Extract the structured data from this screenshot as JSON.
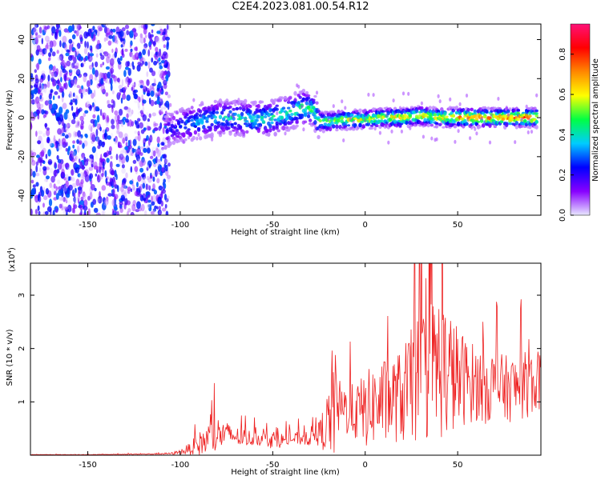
{
  "title": "C2E4.2023.081.00.54.R12",
  "colors": {
    "frame": "#000000",
    "snr_line": "#ee2222",
    "colorbar_stops": [
      "#e8e8ff",
      "#8800ff",
      "#0000ff",
      "#00ccff",
      "#00ff44",
      "#ffff00",
      "#ff8800",
      "#ff0000",
      "#ff1177"
    ]
  },
  "chart_data": [
    {
      "type": "heatmap",
      "title": "C2E4.2023.081.00.54.R12",
      "xlabel": "Height of straight line (km)",
      "ylabel": "Frequency (Hz)",
      "xlim": [
        -181,
        95
      ],
      "ylim": [
        -50,
        48
      ],
      "xticks": [
        -150,
        -100,
        -50,
        0,
        50
      ],
      "yticks": [
        -40,
        -20,
        0,
        20,
        40
      ],
      "grid": false,
      "colorbar": {
        "label": "Normalized spectral amplitude",
        "range": [
          0.0,
          0.95
        ],
        "ticks": [
          0.0,
          0.2,
          0.4,
          0.6,
          0.8
        ]
      },
      "features": {
        "noise_region_x": [
          -181,
          -110
        ],
        "noise_amplitude": 0.15,
        "signal_track": {
          "x": [
            -108,
            -100,
            -90,
            -80,
            -70,
            -60,
            -50,
            -40,
            -33,
            -28,
            -25,
            -20,
            -10,
            0,
            10,
            20,
            30,
            40,
            50,
            60,
            70,
            80,
            93
          ],
          "freq": [
            -7,
            -4,
            -2,
            0,
            0,
            -1,
            0,
            3,
            5,
            4,
            -2,
            -2,
            -1,
            -1,
            0,
            0,
            1,
            0,
            0,
            0,
            0,
            0,
            0
          ],
          "peak_amplitude": [
            0.25,
            0.35,
            0.45,
            0.45,
            0.5,
            0.5,
            0.55,
            0.55,
            0.6,
            0.55,
            0.6,
            0.65,
            0.7,
            0.7,
            0.75,
            0.8,
            0.75,
            0.75,
            0.85,
            0.9,
            0.9,
            0.92,
            0.95
          ]
        }
      }
    },
    {
      "type": "line",
      "xlabel": "Height of straight line (km)",
      "ylabel": "SNR (10 * v/v)",
      "y_multiplier": "(x10",
      "y_multiplier_exp": "4",
      "y_multiplier_close": ")",
      "xlim": [
        -181,
        95
      ],
      "ylim": [
        0,
        3.6
      ],
      "xticks": [
        -150,
        -100,
        -50,
        0,
        50
      ],
      "yticks": [
        1,
        2,
        3
      ],
      "grid": false,
      "series": [
        {
          "x": [
            -181,
            -150,
            -120,
            -105,
            -100,
            -95,
            -90,
            -85,
            -80,
            -75,
            -70,
            -65,
            -60,
            -55,
            -50,
            -45,
            -40,
            -35,
            -30,
            -25,
            -20,
            -17,
            -15,
            -10,
            -5,
            0,
            5,
            10,
            15,
            20,
            25,
            30,
            35,
            40,
            45,
            50,
            55,
            60,
            65,
            70,
            75,
            80,
            85,
            90,
            95
          ],
          "y": [
            0.01,
            0.01,
            0.02,
            0.03,
            0.06,
            0.12,
            0.2,
            0.3,
            0.38,
            0.4,
            0.35,
            0.32,
            0.32,
            0.3,
            0.3,
            0.28,
            0.3,
            0.32,
            0.35,
            0.4,
            0.6,
            1.05,
            0.9,
            0.85,
            0.8,
            0.85,
            0.95,
            1.0,
            1.05,
            1.1,
            1.3,
            1.45,
            1.6,
            1.7,
            1.55,
            1.45,
            1.4,
            1.35,
            1.3,
            1.3,
            1.25,
            1.25,
            1.3,
            1.35,
            1.4
          ],
          "noise_spread": [
            0.005,
            0.005,
            0.01,
            0.02,
            0.05,
            0.12,
            0.25,
            0.35,
            0.4,
            0.25,
            0.2,
            0.2,
            0.15,
            0.15,
            0.2,
            0.15,
            0.12,
            0.15,
            0.2,
            0.25,
            0.7,
            1.4,
            0.6,
            0.55,
            0.6,
            0.8,
            0.85,
            0.9,
            0.9,
            1.0,
            1.2,
            1.4,
            1.5,
            1.6,
            1.4,
            1.1,
            0.9,
            0.8,
            0.8,
            0.75,
            0.7,
            0.7,
            0.7,
            0.7,
            0.6
          ]
        }
      ]
    }
  ]
}
